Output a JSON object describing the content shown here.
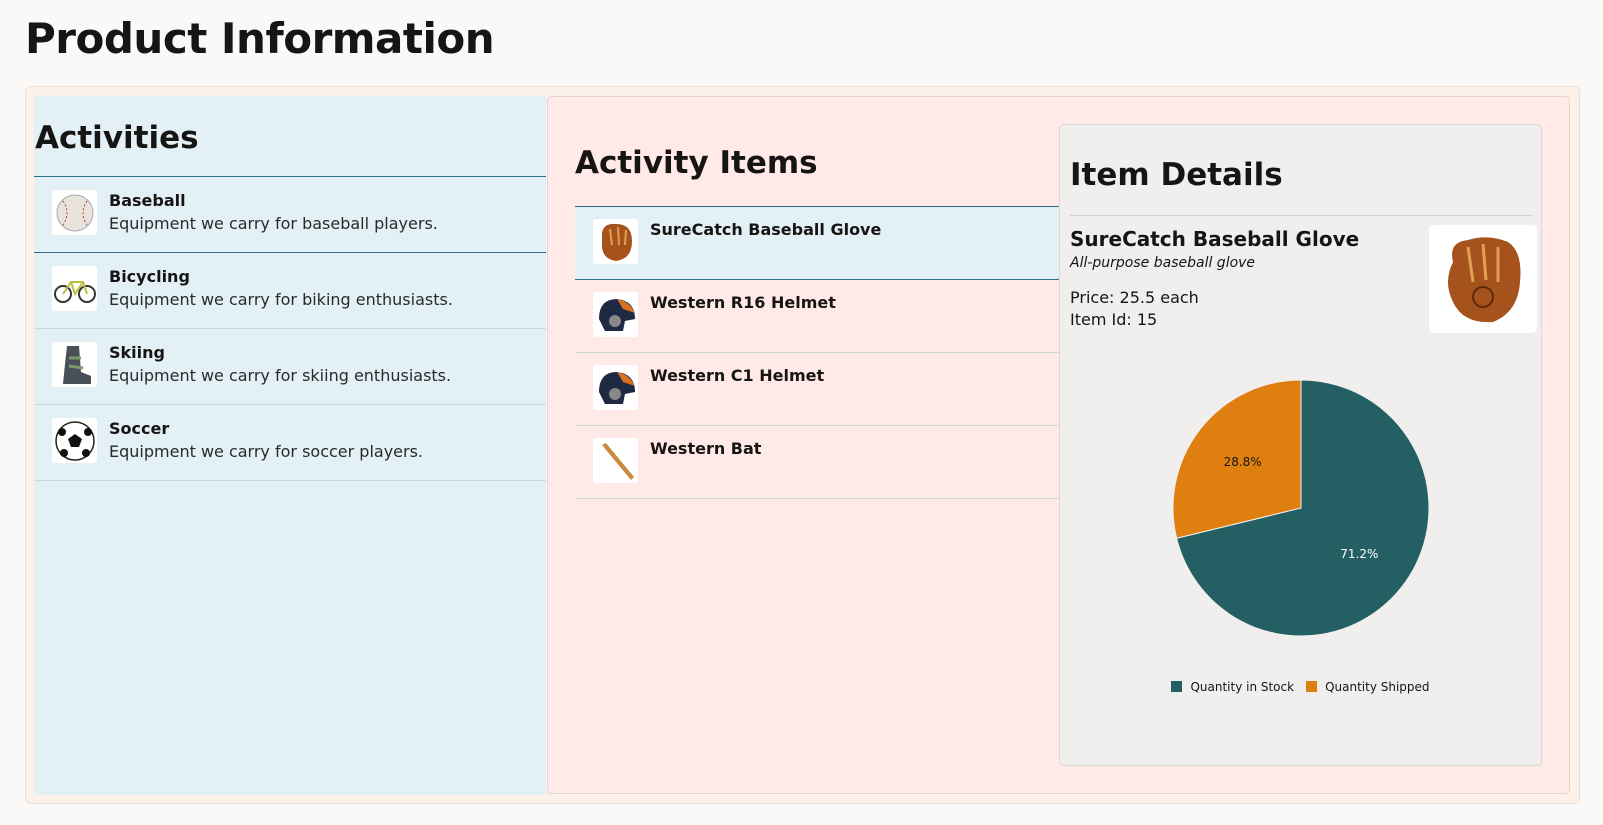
{
  "page_title": "Product Information",
  "activities": {
    "heading": "Activities",
    "items": [
      {
        "name": "Baseball",
        "desc": "Equipment we carry for baseball players.",
        "icon": "baseball-icon"
      },
      {
        "name": "Bicycling",
        "desc": "Equipment we carry for biking enthusiasts.",
        "icon": "bicycle-icon"
      },
      {
        "name": "Skiing",
        "desc": "Equipment we carry for skiing enthusiasts.",
        "icon": "ski-boot-icon"
      },
      {
        "name": "Soccer",
        "desc": "Equipment we carry for soccer players.",
        "icon": "soccer-ball-icon"
      }
    ],
    "selected": "Baseball"
  },
  "activity_items": {
    "heading": "Activity Items",
    "items": [
      {
        "name": "SureCatch Baseball Glove",
        "icon": "glove-icon"
      },
      {
        "name": "Western R16 Helmet",
        "icon": "helmet-icon"
      },
      {
        "name": "Western C1 Helmet",
        "icon": "helmet-icon"
      },
      {
        "name": "Western Bat",
        "icon": "bat-icon"
      }
    ],
    "selected": "SureCatch Baseball Glove"
  },
  "details": {
    "heading": "Item Details",
    "name": "SureCatch Baseball Glove",
    "subtitle": "All-purpose baseball glove",
    "price": "Price: 25.5 each",
    "item_id": "Item Id: 15"
  },
  "chart_data": {
    "type": "pie",
    "series": [
      {
        "name": "Quantity in Stock",
        "value": 71.2,
        "label": "71.2%",
        "color": "#235f63"
      },
      {
        "name": "Quantity Shipped",
        "value": 28.8,
        "label": "28.8%",
        "color": "#df7f10"
      }
    ],
    "legend": "bottom"
  }
}
